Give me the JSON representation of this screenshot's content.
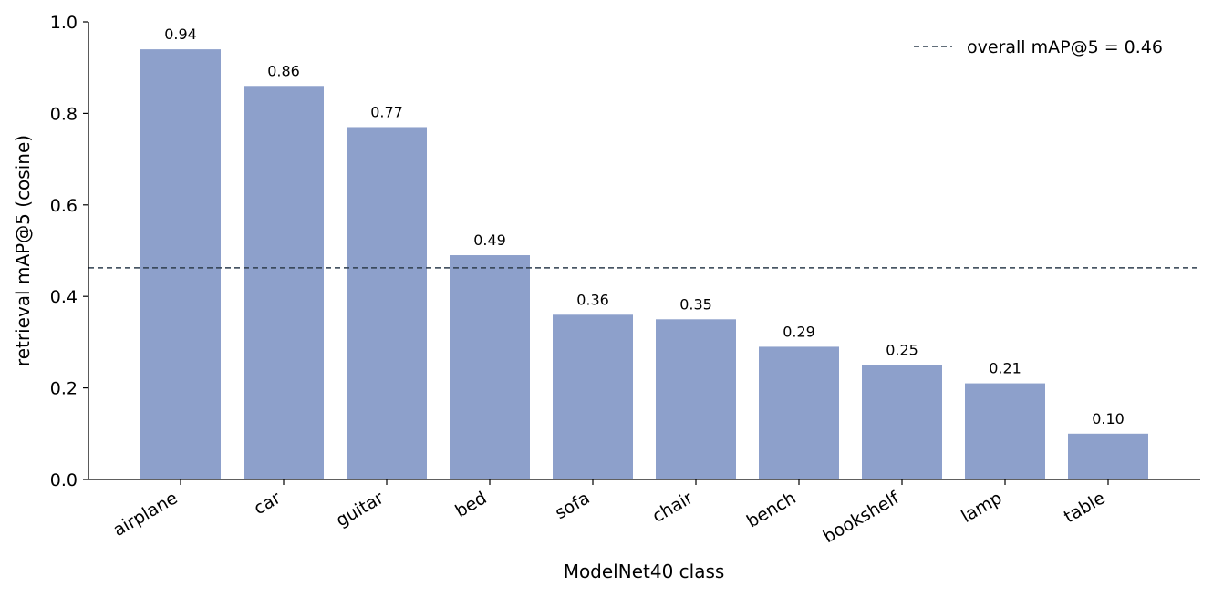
{
  "chart_data": {
    "type": "bar",
    "categories": [
      "airplane",
      "car",
      "guitar",
      "bed",
      "sofa",
      "chair",
      "bench",
      "bookshelf",
      "lamp",
      "table"
    ],
    "values": [
      0.94,
      0.86,
      0.77,
      0.49,
      0.36,
      0.35,
      0.29,
      0.25,
      0.21,
      0.1
    ],
    "value_labels": [
      "0.94",
      "0.86",
      "0.77",
      "0.49",
      "0.36",
      "0.35",
      "0.29",
      "0.25",
      "0.21",
      "0.10"
    ],
    "xlabel": "ModelNet40 class",
    "ylabel": "retrieval mAP@5 (cosine)",
    "ylim": [
      0,
      1.0
    ],
    "yticks": [
      0.0,
      0.2,
      0.4,
      0.6,
      0.8,
      1.0
    ],
    "ytick_labels": [
      "0.0",
      "0.2",
      "0.4",
      "0.6",
      "0.8",
      "1.0"
    ],
    "reference_line": {
      "value": 0.4625,
      "label": "overall mAP@5 = 0.46",
      "style": "dashed",
      "color": "#2f3e4e"
    },
    "bar_color": "#8da0cb",
    "grid": false,
    "legend_position": "top-right"
  }
}
